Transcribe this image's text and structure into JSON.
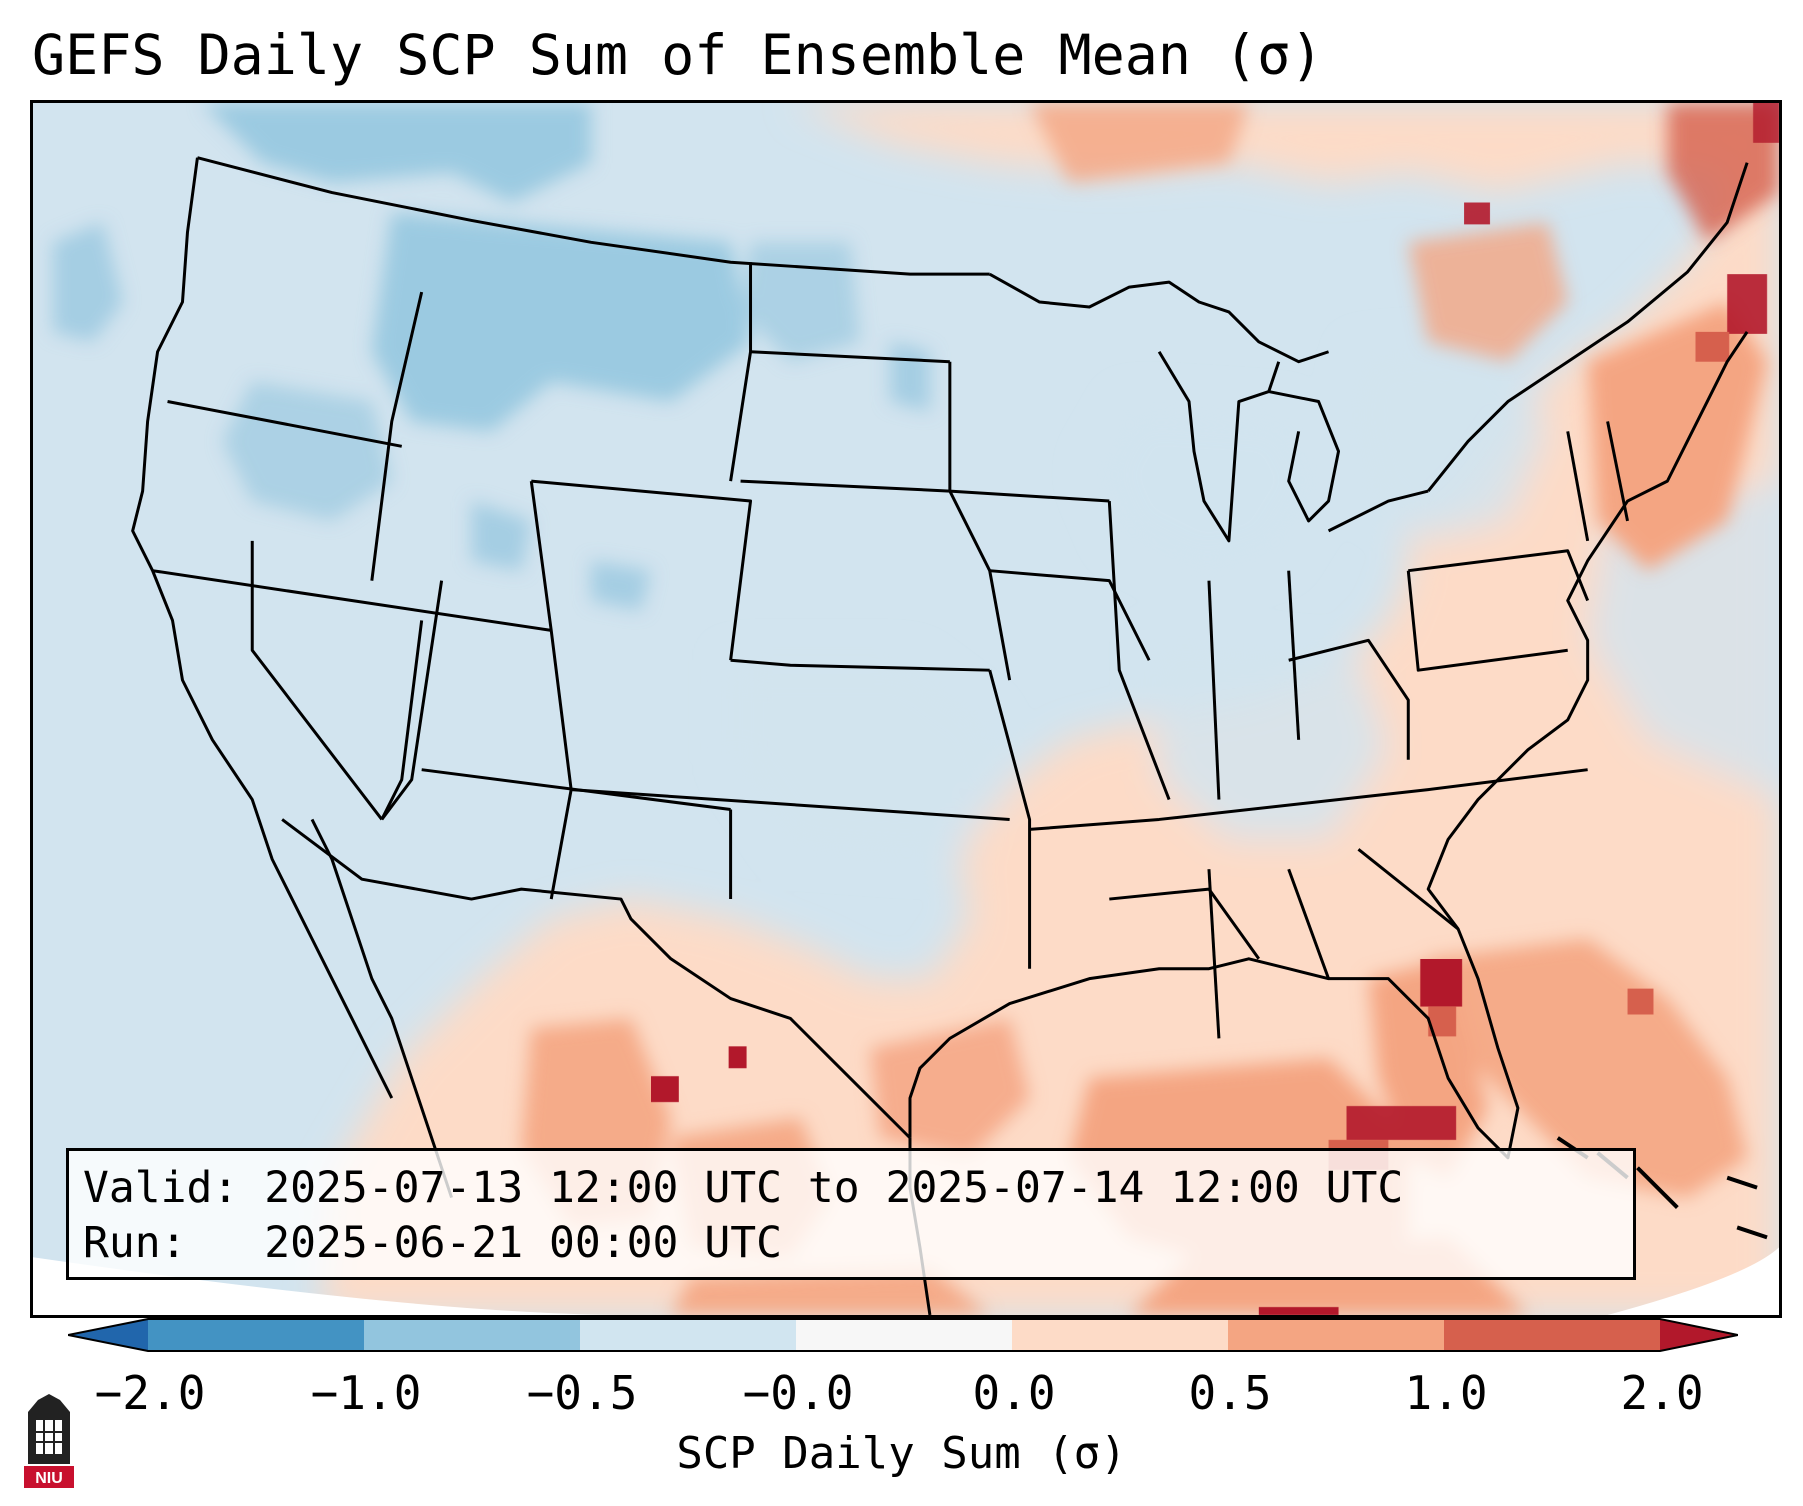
{
  "title": "GEFS Daily SCP Sum of Ensemble Mean (σ)",
  "info": {
    "valid_label": "Valid:",
    "valid_value": "2025-07-13 12:00 UTC to 2025-07-14 12:00 UTC",
    "run_label": "Run:",
    "run_value": "2025-06-21 00:00 UTC"
  },
  "colorbar": {
    "label": "SCP Daily Sum (σ)",
    "tick_labels": [
      "−2.0",
      "−1.0",
      "−0.5",
      "−0.0",
      "0.0",
      "0.5",
      "1.0",
      "2.0"
    ],
    "bins": [
      {
        "from": -2.0,
        "to": -1.0,
        "color": "#4393c3"
      },
      {
        "from": -1.0,
        "to": -0.5,
        "color": "#92c5de"
      },
      {
        "from": -0.5,
        "to": -0.0,
        "color": "#d1e5f0"
      },
      {
        "from": -0.0,
        "to": 0.0,
        "color": "#f7f7f7"
      },
      {
        "from": 0.0,
        "to": 0.5,
        "color": "#fddbc7"
      },
      {
        "from": 0.5,
        "to": 1.0,
        "color": "#f4a582"
      },
      {
        "from": 1.0,
        "to": 2.0,
        "color": "#d6604d"
      }
    ],
    "under_color": "#2166ac",
    "over_color": "#b2182b"
  },
  "colors": {
    "ocean_off_projection": "#ffffff",
    "boundary_line": "#000000"
  },
  "logo": {
    "text": "NIU",
    "color": "#c8102e"
  }
}
